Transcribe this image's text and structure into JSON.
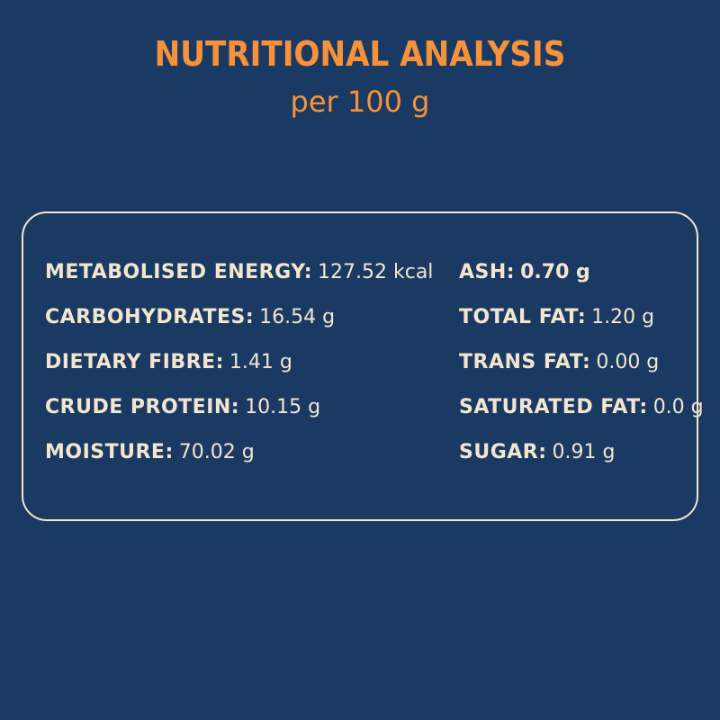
{
  "header": {
    "title": "NUTRITIONAL ANALYSIS",
    "subtitle": "per 100 g"
  },
  "left": [
    {
      "label": "METABOLISED ENERGY:",
      "value": "127.52 kcal"
    },
    {
      "label": "CARBOHYDRATES:",
      "value": "16.54 g"
    },
    {
      "label": "DIETARY FIBRE:",
      "value": "1.41 g"
    },
    {
      "label": "CRUDE PROTEIN:",
      "value": "10.15 g"
    },
    {
      "label": "MOISTURE:",
      "value": "70.02 g"
    }
  ],
  "right": [
    {
      "label": "ASH:",
      "value": "0.70 g"
    },
    {
      "label": "TOTAL FAT:",
      "value": "1.20 g"
    },
    {
      "label": "TRANS FAT:",
      "value": "0.00 g"
    },
    {
      "label": "SATURATED FAT:",
      "value": "0.0 g"
    },
    {
      "label": "SUGAR:",
      "value": "0.91 g"
    }
  ]
}
